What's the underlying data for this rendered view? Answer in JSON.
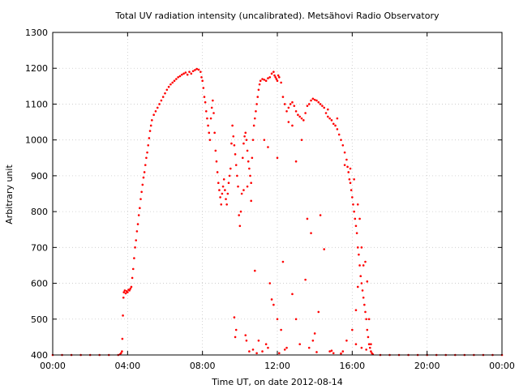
{
  "chart_data": {
    "type": "scatter",
    "title": "Total UV radiation intensity (uncalibrated). Metsähovi Radio Observatory",
    "xlabel": "Time UT, on date 2012-08-14",
    "ylabel": "Arbitrary unit",
    "xlim": [
      0,
      24
    ],
    "ylim": [
      400,
      1300
    ],
    "x_ticks": [
      0,
      4,
      8,
      12,
      16,
      20,
      24
    ],
    "x_tick_labels": [
      "00:00",
      "04:00",
      "08:00",
      "12:00",
      "16:00",
      "20:00",
      "00:00"
    ],
    "y_ticks": [
      400,
      500,
      600,
      700,
      800,
      900,
      1000,
      1100,
      1200,
      1300
    ],
    "y_tick_labels": [
      "400",
      "500",
      "600",
      "700",
      "800",
      "900",
      "1000",
      "1100",
      "1200",
      "1300"
    ],
    "grid": true,
    "marker_color": "#ff0000",
    "series": [
      {
        "points": [
          [
            0.0,
            400
          ],
          [
            0.5,
            400
          ],
          [
            1.0,
            400
          ],
          [
            1.5,
            400
          ],
          [
            2.0,
            400
          ],
          [
            2.5,
            400
          ],
          [
            3.0,
            400
          ],
          [
            3.5,
            400
          ],
          [
            3.6,
            402
          ],
          [
            3.65,
            405
          ],
          [
            3.7,
            410
          ],
          [
            3.72,
            445
          ],
          [
            3.75,
            510
          ],
          [
            3.78,
            560
          ],
          [
            3.8,
            575
          ],
          [
            3.85,
            580
          ],
          [
            3.9,
            572
          ],
          [
            3.95,
            578
          ],
          [
            4.0,
            575
          ],
          [
            4.05,
            582
          ],
          [
            4.1,
            580
          ],
          [
            4.15,
            585
          ],
          [
            4.2,
            590
          ],
          [
            4.25,
            615
          ],
          [
            4.3,
            640
          ],
          [
            4.35,
            670
          ],
          [
            4.4,
            700
          ],
          [
            4.45,
            720
          ],
          [
            4.5,
            745
          ],
          [
            4.55,
            765
          ],
          [
            4.6,
            790
          ],
          [
            4.65,
            810
          ],
          [
            4.7,
            835
          ],
          [
            4.75,
            855
          ],
          [
            4.8,
            875
          ],
          [
            4.85,
            895
          ],
          [
            4.9,
            910
          ],
          [
            4.95,
            930
          ],
          [
            5.0,
            950
          ],
          [
            5.05,
            965
          ],
          [
            5.1,
            985
          ],
          [
            5.15,
            1005
          ],
          [
            5.2,
            1025
          ],
          [
            5.25,
            1040
          ],
          [
            5.3,
            1055
          ],
          [
            5.4,
            1070
          ],
          [
            5.5,
            1080
          ],
          [
            5.6,
            1090
          ],
          [
            5.7,
            1100
          ],
          [
            5.8,
            1110
          ],
          [
            5.9,
            1120
          ],
          [
            6.0,
            1130
          ],
          [
            6.1,
            1140
          ],
          [
            6.2,
            1148
          ],
          [
            6.3,
            1155
          ],
          [
            6.4,
            1160
          ],
          [
            6.5,
            1165
          ],
          [
            6.6,
            1170
          ],
          [
            6.7,
            1175
          ],
          [
            6.8,
            1178
          ],
          [
            6.9,
            1182
          ],
          [
            7.0,
            1185
          ],
          [
            7.1,
            1188
          ],
          [
            7.2,
            1182
          ],
          [
            7.3,
            1190
          ],
          [
            7.4,
            1185
          ],
          [
            7.5,
            1192
          ],
          [
            7.6,
            1195
          ],
          [
            7.7,
            1198
          ],
          [
            7.8,
            1196
          ],
          [
            7.9,
            1190
          ],
          [
            7.95,
            1175
          ],
          [
            8.0,
            1165
          ],
          [
            8.05,
            1145
          ],
          [
            8.1,
            1120
          ],
          [
            8.15,
            1105
          ],
          [
            8.2,
            1080
          ],
          [
            8.25,
            1060
          ],
          [
            8.3,
            1040
          ],
          [
            8.35,
            1020
          ],
          [
            8.4,
            1000
          ],
          [
            8.45,
            1060
          ],
          [
            8.5,
            1090
          ],
          [
            8.55,
            1110
          ],
          [
            8.6,
            1075
          ],
          [
            8.65,
            1020
          ],
          [
            8.7,
            970
          ],
          [
            8.75,
            940
          ],
          [
            8.8,
            910
          ],
          [
            8.85,
            880
          ],
          [
            8.9,
            860
          ],
          [
            8.95,
            840
          ],
          [
            9.0,
            820
          ],
          [
            9.05,
            850
          ],
          [
            9.1,
            870
          ],
          [
            9.15,
            890
          ],
          [
            9.2,
            860
          ],
          [
            9.25,
            835
          ],
          [
            9.3,
            820
          ],
          [
            9.35,
            850
          ],
          [
            9.4,
            880
          ],
          [
            9.45,
            900
          ],
          [
            9.5,
            920
          ],
          [
            9.55,
            990
          ],
          [
            9.6,
            1040
          ],
          [
            9.65,
            1010
          ],
          [
            9.7,
            985
          ],
          [
            9.75,
            960
          ],
          [
            9.8,
            930
          ],
          [
            9.85,
            900
          ],
          [
            9.9,
            870
          ],
          [
            9.95,
            790
          ],
          [
            10.0,
            760
          ],
          [
            10.05,
            800
          ],
          [
            10.1,
            850
          ],
          [
            10.15,
            950
          ],
          [
            10.2,
            990
          ],
          [
            10.25,
            1010
          ],
          [
            10.3,
            1020
          ],
          [
            10.35,
            1000
          ],
          [
            10.4,
            970
          ],
          [
            10.45,
            940
          ],
          [
            10.5,
            920
          ],
          [
            10.55,
            900
          ],
          [
            10.6,
            880
          ],
          [
            10.65,
            950
          ],
          [
            10.7,
            1000
          ],
          [
            10.75,
            1040
          ],
          [
            10.8,
            1060
          ],
          [
            10.85,
            1080
          ],
          [
            10.9,
            1100
          ],
          [
            10.95,
            1120
          ],
          [
            11.0,
            1140
          ],
          [
            11.05,
            1155
          ],
          [
            11.1,
            1165
          ],
          [
            11.2,
            1170
          ],
          [
            11.3,
            1168
          ],
          [
            11.4,
            1165
          ],
          [
            11.5,
            1172
          ],
          [
            11.6,
            1175
          ],
          [
            11.7,
            1185
          ],
          [
            11.8,
            1190
          ],
          [
            11.85,
            1180
          ],
          [
            11.9,
            1175
          ],
          [
            11.95,
            1170
          ],
          [
            12.0,
            1165
          ],
          [
            12.05,
            1180
          ],
          [
            12.1,
            1175
          ],
          [
            12.2,
            1160
          ],
          [
            12.3,
            1120
          ],
          [
            12.4,
            1100
          ],
          [
            12.5,
            1080
          ],
          [
            12.6,
            1090
          ],
          [
            12.7,
            1100
          ],
          [
            12.8,
            1105
          ],
          [
            12.9,
            1095
          ],
          [
            13.0,
            1080
          ],
          [
            13.1,
            1070
          ],
          [
            13.2,
            1065
          ],
          [
            13.3,
            1060
          ],
          [
            13.4,
            1055
          ],
          [
            13.5,
            1075
          ],
          [
            13.6,
            1095
          ],
          [
            13.7,
            1100
          ],
          [
            13.8,
            1110
          ],
          [
            13.9,
            1115
          ],
          [
            14.0,
            1112
          ],
          [
            14.1,
            1110
          ],
          [
            14.2,
            1105
          ],
          [
            14.3,
            1100
          ],
          [
            14.4,
            1095
          ],
          [
            14.5,
            1090
          ],
          [
            14.6,
            1075
          ],
          [
            14.7,
            1065
          ],
          [
            14.8,
            1060
          ],
          [
            14.9,
            1055
          ],
          [
            15.0,
            1045
          ],
          [
            15.1,
            1040
          ],
          [
            15.2,
            1030
          ],
          [
            15.3,
            1015
          ],
          [
            15.4,
            1000
          ],
          [
            15.5,
            985
          ],
          [
            15.6,
            965
          ],
          [
            15.7,
            945
          ],
          [
            15.75,
            925
          ],
          [
            15.8,
            910
          ],
          [
            15.85,
            890
          ],
          [
            15.9,
            880
          ],
          [
            15.95,
            860
          ],
          [
            16.0,
            840
          ],
          [
            16.05,
            820
          ],
          [
            16.1,
            800
          ],
          [
            16.15,
            780
          ],
          [
            16.2,
            760
          ],
          [
            16.25,
            740
          ],
          [
            16.3,
            700
          ],
          [
            16.35,
            680
          ],
          [
            16.4,
            650
          ],
          [
            16.45,
            620
          ],
          [
            16.5,
            600
          ],
          [
            16.55,
            580
          ],
          [
            16.6,
            560
          ],
          [
            16.65,
            540
          ],
          [
            16.7,
            520
          ],
          [
            16.75,
            500
          ],
          [
            16.8,
            470
          ],
          [
            16.85,
            450
          ],
          [
            16.9,
            430
          ],
          [
            16.95,
            420
          ],
          [
            17.0,
            410
          ],
          [
            17.05,
            405
          ],
          [
            17.1,
            402
          ],
          [
            17.5,
            400
          ],
          [
            18.0,
            400
          ],
          [
            18.5,
            400
          ],
          [
            19.0,
            400
          ],
          [
            19.5,
            400
          ],
          [
            20.0,
            400
          ],
          [
            20.5,
            400
          ],
          [
            21.0,
            400
          ],
          [
            21.5,
            400
          ],
          [
            22.0,
            400
          ],
          [
            22.5,
            400
          ],
          [
            23.0,
            400
          ],
          [
            23.5,
            400
          ],
          [
            24.0,
            400
          ],
          [
            9.7,
            505
          ],
          [
            9.75,
            450
          ],
          [
            9.8,
            470
          ],
          [
            10.3,
            455
          ],
          [
            10.35,
            440
          ],
          [
            10.5,
            410
          ],
          [
            10.7,
            415
          ],
          [
            10.9,
            405
          ],
          [
            11.2,
            410
          ],
          [
            11.5,
            420
          ],
          [
            11.6,
            600
          ],
          [
            11.7,
            555
          ],
          [
            11.8,
            540
          ],
          [
            12.0,
            500
          ],
          [
            12.2,
            470
          ],
          [
            12.3,
            660
          ],
          [
            12.5,
            420
          ],
          [
            12.8,
            570
          ],
          [
            13.0,
            500
          ],
          [
            13.2,
            430
          ],
          [
            13.5,
            610
          ],
          [
            13.6,
            780
          ],
          [
            13.8,
            740
          ],
          [
            13.9,
            440
          ],
          [
            14.0,
            460
          ],
          [
            14.2,
            520
          ],
          [
            14.3,
            790
          ],
          [
            14.5,
            695
          ],
          [
            14.8,
            410
          ],
          [
            15.0,
            405
          ],
          [
            15.5,
            410
          ],
          [
            15.7,
            440
          ],
          [
            16.0,
            470
          ],
          [
            16.2,
            525
          ],
          [
            16.3,
            590
          ],
          [
            16.5,
            420
          ],
          [
            16.6,
            650
          ],
          [
            16.7,
            660
          ],
          [
            16.8,
            605
          ],
          [
            16.9,
            500
          ],
          [
            10.2,
            860
          ],
          [
            10.4,
            870
          ],
          [
            10.6,
            830
          ],
          [
            11.3,
            1000
          ],
          [
            11.5,
            980
          ],
          [
            12.0,
            950
          ],
          [
            12.6,
            1050
          ],
          [
            12.8,
            1040
          ],
          [
            13.0,
            940
          ],
          [
            13.3,
            1000
          ],
          [
            14.7,
            1085
          ],
          [
            15.2,
            1060
          ],
          [
            15.6,
            930
          ],
          [
            15.9,
            920
          ],
          [
            16.1,
            890
          ],
          [
            16.3,
            820
          ],
          [
            16.4,
            780
          ],
          [
            16.5,
            700
          ],
          [
            10.8,
            635
          ],
          [
            11.0,
            440
          ],
          [
            11.4,
            430
          ],
          [
            12.1,
            405
          ],
          [
            12.4,
            415
          ],
          [
            13.7,
            420
          ],
          [
            14.1,
            408
          ],
          [
            14.9,
            412
          ],
          [
            15.4,
            404
          ],
          [
            16.2,
            430
          ],
          [
            16.75,
            415
          ],
          [
            17.0,
            430
          ]
        ]
      }
    ]
  }
}
